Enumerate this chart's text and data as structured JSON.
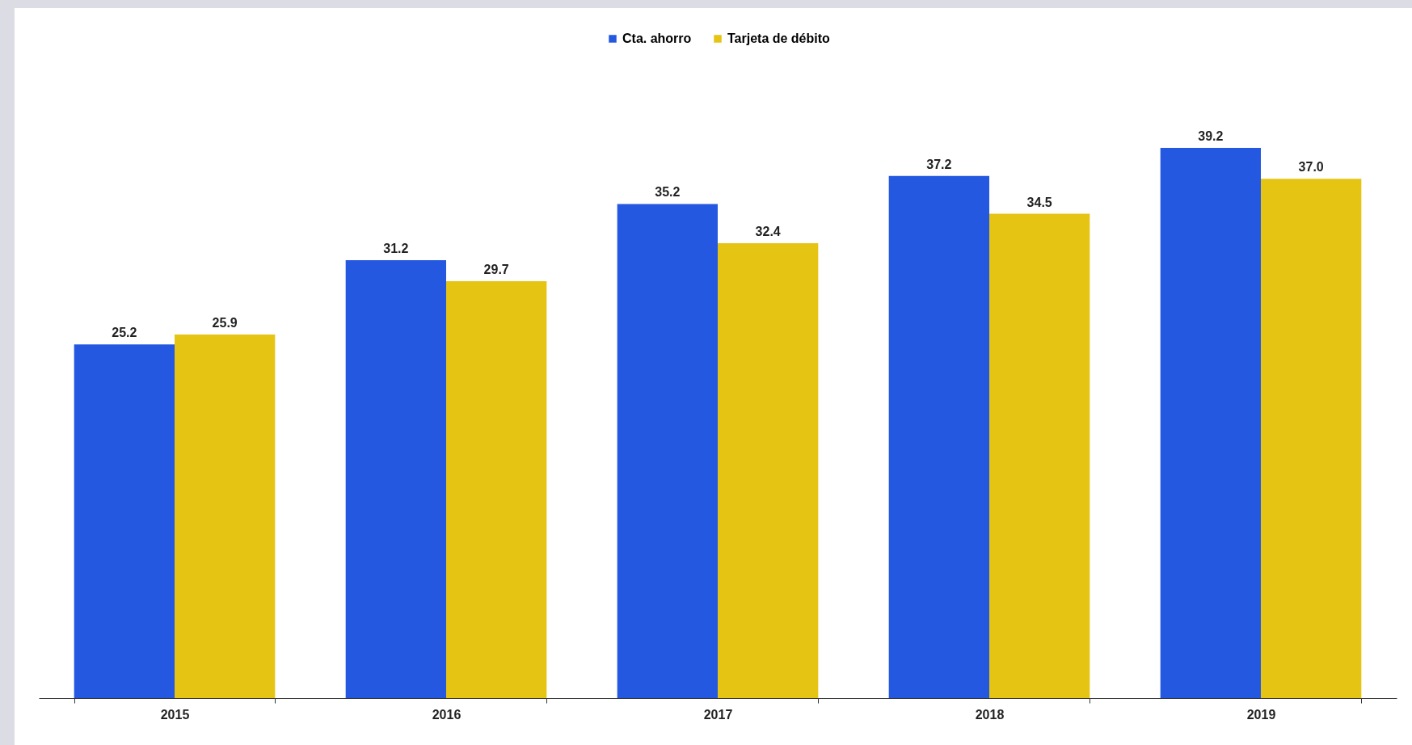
{
  "chart_data": {
    "type": "bar",
    "categories": [
      "2015",
      "2016",
      "2017",
      "2018",
      "2019"
    ],
    "series": [
      {
        "name": "Cta. ahorro",
        "color": "#2558e0",
        "values": [
          25.2,
          31.2,
          35.2,
          37.2,
          39.2
        ],
        "value_labels": [
          "25.2",
          "31.2",
          "35.2",
          "37.2",
          "39.2"
        ]
      },
      {
        "name": "Tarjeta de débito",
        "color": "#e5c414",
        "values": [
          25.9,
          29.7,
          32.4,
          34.5,
          37.0
        ],
        "value_labels": [
          "25.9",
          "29.7",
          "32.4",
          "34.5",
          "37.0"
        ]
      }
    ],
    "legend": "top",
    "grid": false
  }
}
